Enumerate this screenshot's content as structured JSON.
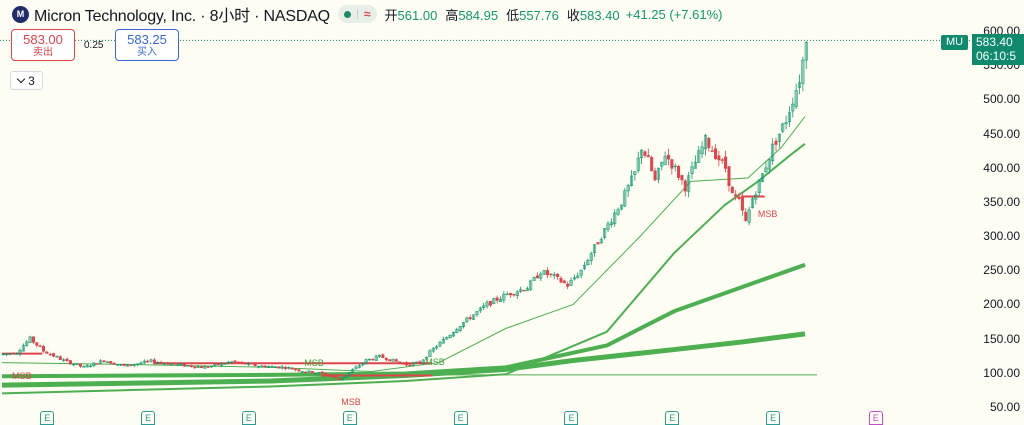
{
  "header": {
    "symbol_title": "Micron Technology, Inc. · 8小时 · NASDAQ",
    "logo_text": "M",
    "status_wave": "≈",
    "ohlc": [
      {
        "key": "开",
        "value": "561.00"
      },
      {
        "key": "高",
        "value": "584.95"
      },
      {
        "key": "低",
        "value": "557.76"
      },
      {
        "key": "收",
        "value": "583.40"
      }
    ],
    "change": "+41.25 (+7.61%)"
  },
  "trade": {
    "sell_price": "583.00",
    "sell_label": "卖出",
    "spread": "0.25",
    "buy_price": "583.25",
    "buy_label": "买入"
  },
  "indicator_toggle": {
    "count": "3"
  },
  "price_axis": {
    "labels": [
      "600.00",
      "550.00",
      "500.00",
      "450.00",
      "400.00",
      "350.00",
      "300.00",
      "250.00",
      "200.00",
      "150.00",
      "100.00",
      "50.00"
    ],
    "symbol_tag": "MU",
    "last_price": "583.40",
    "countdown": "06:10:5"
  },
  "annotations": {
    "msb_label": "MSB"
  },
  "earnings_marker": "E",
  "colors": {
    "up": "#0f9a6e",
    "down": "#e0434a",
    "ma_green": "#4caf50",
    "msb_red": "#e0434a",
    "background": "#fdfdf3",
    "tag": "#0f8a6c"
  },
  "chart_data": {
    "type": "candlestick",
    "ylim": [
      40,
      620
    ],
    "last_close": 583.4,
    "candle_count": 150,
    "path_points": [
      [
        0,
        127
      ],
      [
        4,
        130
      ],
      [
        8,
        150
      ],
      [
        12,
        132
      ],
      [
        18,
        118
      ],
      [
        24,
        108
      ],
      [
        30,
        118
      ],
      [
        36,
        110
      ],
      [
        44,
        117
      ],
      [
        52,
        112
      ],
      [
        60,
        108
      ],
      [
        68,
        116
      ],
      [
        76,
        110
      ],
      [
        84,
        108
      ],
      [
        90,
        102
      ],
      [
        96,
        98
      ],
      [
        100,
        90
      ],
      [
        104,
        104
      ],
      [
        108,
        118
      ],
      [
        112,
        124
      ],
      [
        116,
        118
      ],
      [
        120,
        112
      ],
      [
        124,
        115
      ],
      [
        128,
        135
      ],
      [
        132,
        152
      ],
      [
        136,
        170
      ],
      [
        140,
        185
      ],
      [
        144,
        200
      ],
      [
        150,
        215
      ],
      [
        156,
        225
      ],
      [
        160,
        248
      ],
      [
        164,
        240
      ],
      [
        168,
        228
      ],
      [
        172,
        250
      ],
      [
        178,
        300
      ],
      [
        184,
        350
      ],
      [
        188,
        392
      ],
      [
        190,
        430
      ],
      [
        192,
        410
      ],
      [
        194,
        380
      ],
      [
        197,
        420
      ],
      [
        200,
        398
      ],
      [
        203,
        372
      ],
      [
        206,
        408
      ],
      [
        209,
        440
      ],
      [
        212,
        420
      ],
      [
        215,
        400
      ],
      [
        217,
        360
      ],
      [
        219,
        350
      ],
      [
        221,
        320
      ],
      [
        223,
        355
      ],
      [
        226,
        390
      ],
      [
        229,
        430
      ],
      [
        231,
        450
      ],
      [
        233,
        470
      ],
      [
        235,
        500
      ],
      [
        237,
        530
      ],
      [
        239,
        583.4
      ]
    ],
    "moving_averages": [
      {
        "points": [
          [
            0,
            95
          ],
          [
            40,
            96
          ],
          [
            80,
            97
          ],
          [
            120,
            99
          ],
          [
            150,
            108
          ],
          [
            180,
            140
          ],
          [
            200,
            190
          ],
          [
            220,
            225
          ],
          [
            239,
            258
          ]
        ]
      },
      {
        "points": [
          [
            0,
            82
          ],
          [
            40,
            85
          ],
          [
            80,
            88
          ],
          [
            120,
            96
          ],
          [
            150,
            105
          ],
          [
            170,
            118
          ],
          [
            200,
            134
          ],
          [
            220,
            145
          ],
          [
            239,
            157
          ]
        ]
      },
      {
        "points": [
          [
            0,
            70
          ],
          [
            40,
            75
          ],
          [
            80,
            80
          ],
          [
            120,
            88
          ],
          [
            150,
            98
          ],
          [
            180,
            160
          ],
          [
            200,
            275
          ],
          [
            215,
            345
          ],
          [
            225,
            380
          ],
          [
            235,
            420
          ],
          [
            239,
            435
          ]
        ]
      },
      {
        "points": [
          [
            0,
            115
          ],
          [
            40,
            112
          ],
          [
            80,
            108
          ],
          [
            110,
            102
          ],
          [
            130,
            115
          ],
          [
            150,
            165
          ],
          [
            170,
            200
          ],
          [
            190,
            300
          ],
          [
            205,
            380
          ],
          [
            222,
            385
          ],
          [
            232,
            430
          ],
          [
            239,
            475
          ]
        ]
      }
    ],
    "msb_lines": [
      {
        "x": [
          0,
          12
        ],
        "y": 128
      },
      {
        "x": [
          45,
          128
        ],
        "y": 114
      },
      {
        "x": [
          95,
          128
        ],
        "y": 96
      },
      {
        "x": [
          220,
          227
        ],
        "y": 358
      }
    ],
    "volume_profile_line": {
      "x": [
        128,
        239
      ],
      "y": 97
    },
    "msb_marks": [
      {
        "bar": 0,
        "price": 95,
        "color": "red"
      },
      {
        "bar": 87,
        "price": 115,
        "color": "green"
      },
      {
        "bar": 123,
        "price": 116,
        "color": "green"
      },
      {
        "bar": 98,
        "price": 58,
        "color": "red"
      },
      {
        "bar": 222,
        "price": 333,
        "color": "red"
      }
    ],
    "earnings_bars": [
      12,
      42,
      72,
      102,
      135,
      168,
      198,
      228
    ],
    "future_earnings_bar": 258
  }
}
